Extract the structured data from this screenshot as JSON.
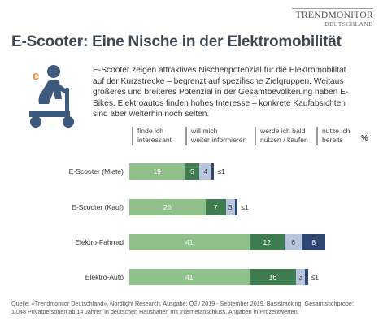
{
  "logo": {
    "main": "TRENDMONITOR",
    "sub": "DEUTSCHLAND"
  },
  "title": "E-Scooter: Eine Nische in der Elektromobilität",
  "description": "E-Scooter zeigen attraktives Nischenpotenzial für die Elektromobilität auf der Kurzstrecke – begrenzt auf spezifische Zielgruppen. Weitaus größeres und breiteres Potenzial in der Gesamtbevölkerung haben E-Bikes. Elektroautos finden hohes Interesse – konkrete Kaufabsichten sind aber weiterhin noch selten.",
  "icon": {
    "name": "e-scooter-rider-icon",
    "letter": "e",
    "accent": "#e8883a",
    "figure": "#3d5a7d"
  },
  "footnote": "Quelle: «Trendmonitor Deutschland», Nordlight Research. Ausgabe: Q2 / 2019 - September 2019. Basistracking. Gesamtstichprobe: 1.048 Privatpersonen ab 14 Jahren in deutschen Haushalten mit Internetanschluss. Angaben in Prozentwerten.",
  "chart_data": {
    "type": "bar",
    "stacked": true,
    "orientation": "horizontal",
    "unit_label": "%",
    "categories": [
      "E-Scooter (Miete)",
      "E-Scooter (Kauf)",
      "Elektro-Fahrrad",
      "Elektro-Auto"
    ],
    "series": [
      {
        "name": "finde ich\ninteressant",
        "color": "#8fc08a",
        "label_color": "#ffffff",
        "values": [
          19,
          26,
          41,
          41
        ]
      },
      {
        "name": "will mich\nweiter informieren",
        "color": "#3f7d50",
        "label_color": "#ffffff",
        "values": [
          5,
          7,
          12,
          16
        ]
      },
      {
        "name": "werde ich bald\nnutzen / kaufen",
        "color": "#b7c6dc",
        "label_color": "#444444",
        "values": [
          4,
          3,
          6,
          3
        ]
      },
      {
        "name": "nutze ich\nbereits",
        "color": "#2e4672",
        "label_color": "#ffffff",
        "values": [
          1,
          1,
          8,
          1
        ]
      }
    ],
    "value_labels": [
      [
        "19",
        "5",
        "4",
        "≤1"
      ],
      [
        "26",
        "7",
        "3",
        "≤1"
      ],
      [
        "41",
        "12",
        "6",
        "8"
      ],
      [
        "41",
        "16",
        "3",
        "≤1"
      ]
    ]
  }
}
